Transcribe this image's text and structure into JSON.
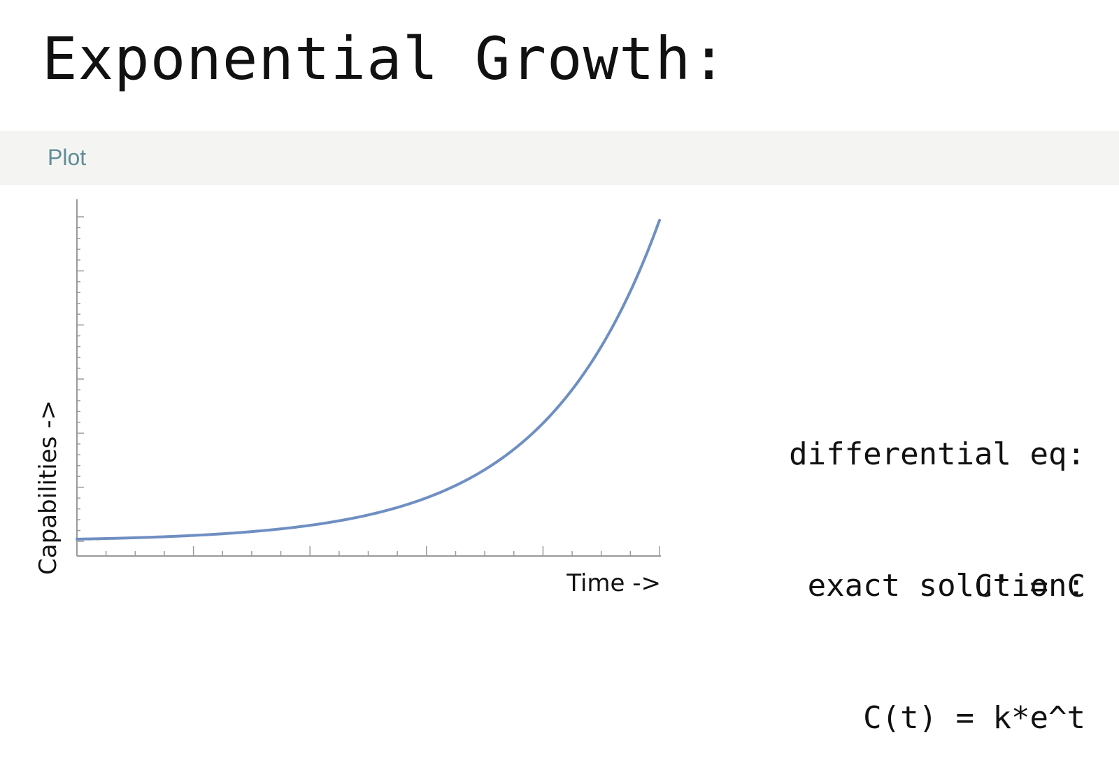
{
  "slide": {
    "title": "Exponential Growth:"
  },
  "panel": {
    "header_label": "Plot"
  },
  "chart_data": {
    "type": "line",
    "title": "",
    "xlabel": "Time ->",
    "ylabel": "Capabilities ->",
    "x_range": [
      0,
      5
    ],
    "y_range": [
      0,
      150
    ],
    "grid": false,
    "legend": "none",
    "tick_labels_shown": false,
    "function": "e^t",
    "series": [
      {
        "x": [
          0,
          0.25,
          0.5,
          0.75,
          1,
          1.25,
          1.5,
          1.75,
          2,
          2.25,
          2.5,
          2.75,
          3,
          3.25,
          3.5,
          3.75,
          4,
          4.25,
          4.5,
          4.75,
          5
        ],
        "y": [
          1.0,
          1.28,
          1.65,
          2.12,
          2.72,
          3.49,
          4.48,
          5.75,
          7.39,
          9.49,
          12.18,
          15.64,
          20.09,
          25.79,
          33.12,
          42.52,
          54.6,
          70.11,
          90.02,
          115.58,
          148.41
        ]
      }
    ],
    "colors": {
      "line": "#6f8fc2",
      "axis": "#9a9a9a"
    }
  },
  "equations": {
    "differential_label": "differential eq:",
    "differential": "C' = C",
    "solution_label": "exact solution:",
    "solution": "C(t) = k*e^t"
  }
}
